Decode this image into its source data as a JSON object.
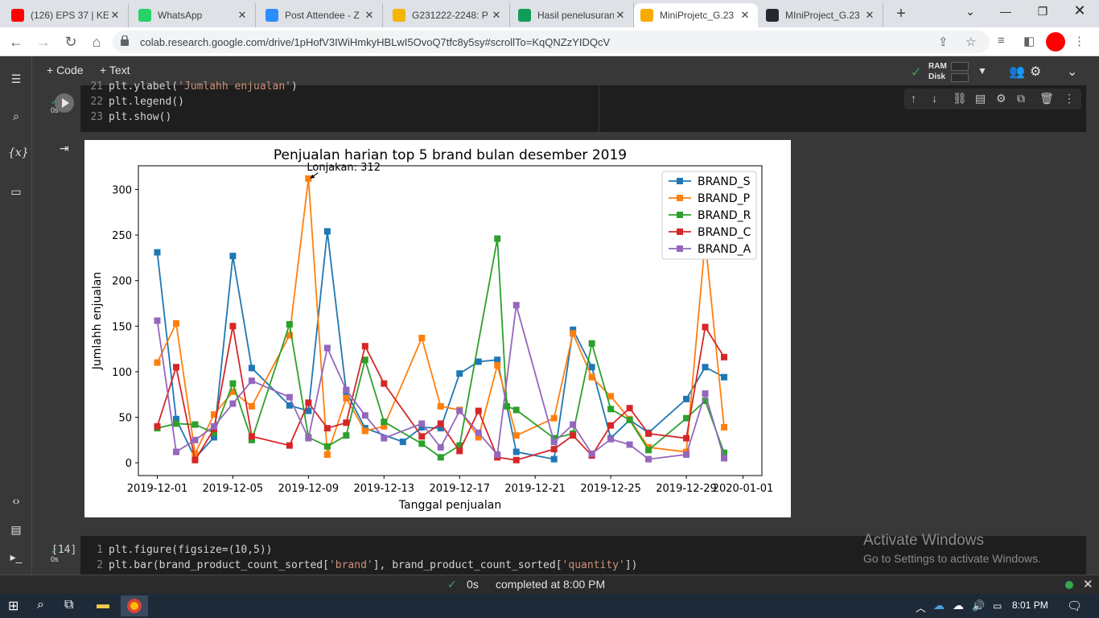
{
  "browser": {
    "tabs": [
      {
        "title": "(126) EPS 37 | KES",
        "icon": "youtube-icon",
        "color": "#ff0000"
      },
      {
        "title": "WhatsApp",
        "icon": "whatsapp-icon",
        "color": "#25d366"
      },
      {
        "title": "Post Attendee - Z",
        "icon": "zoom-icon",
        "color": "#2d8cff"
      },
      {
        "title": "G231222-2248: P",
        "icon": "g-icon",
        "color": "#f4b400"
      },
      {
        "title": "Hasil penelusuran",
        "icon": "drive-icon",
        "color": "#0f9d58"
      },
      {
        "title": "MiniProjetc_G.23",
        "icon": "colab-icon",
        "color": "#f9ab00"
      },
      {
        "title": "MIniProject_G.23",
        "icon": "github-icon",
        "color": "#24292e"
      }
    ],
    "new_tab": "+",
    "url": "colab.research.google.com/drive/1pHofV3IWiHmkyHBLwI5OvoQ7tfc8y5sy#scrollTo=KqQNZzYIDQcV"
  },
  "colab": {
    "add_code": "+ Code",
    "add_text": "+ Text",
    "ram_label": "RAM",
    "disk_label": "Disk"
  },
  "cell1": {
    "status": "0s",
    "lines": [
      {
        "num": "21",
        "pre": "plt.ylabel(",
        "str": "'Jumlahh enjualan'",
        "post": ")"
      },
      {
        "num": "22",
        "pre": "plt.legend()",
        "str": "",
        "post": ""
      },
      {
        "num": "23",
        "pre": "plt.show()",
        "str": "",
        "post": ""
      }
    ]
  },
  "cell2": {
    "exec_count": "[14]",
    "status": "0s",
    "lines": [
      {
        "num": "1",
        "text": "plt.figure(figsize=(10,5))"
      },
      {
        "num": "2",
        "pre": "plt.bar(brand_product_count_sorted[",
        "str1": "'brand'",
        "mid": "], brand_product_count_sorted[",
        "str2": "'quantity'",
        "post": "])"
      }
    ]
  },
  "chart_data": {
    "type": "line",
    "title": "Penjualan harian top 5 brand bulan desember 2019",
    "xlabel": "Tanggal penjualan",
    "ylabel": "Jumlahh enjualan",
    "x_ticks": [
      "2019-12-01",
      "2019-12-05",
      "2019-12-09",
      "2019-12-13",
      "2019-12-17",
      "2019-12-21",
      "2019-12-25",
      "2019-12-29",
      "2020-01-01"
    ],
    "y_ticks": [
      0,
      50,
      100,
      150,
      200,
      250,
      300
    ],
    "xlim": [
      "2019-11-30",
      "2020-01-02"
    ],
    "ylim": [
      -14,
      326
    ],
    "legend_position": "upper right",
    "annotation": {
      "text": "Lonjakan: 312",
      "x": "2019-12-09",
      "y": 312
    },
    "series": [
      {
        "name": "BRAND_S",
        "color": "#1f77b4",
        "points": [
          [
            "2019-12-01",
            231
          ],
          [
            "2019-12-02",
            48
          ],
          [
            "2019-12-03",
            5
          ],
          [
            "2019-12-04",
            28
          ],
          [
            "2019-12-05",
            227
          ],
          [
            "2019-12-06",
            104
          ],
          [
            "2019-12-08",
            63
          ],
          [
            "2019-12-09",
            57
          ],
          [
            "2019-12-10",
            254
          ],
          [
            "2019-12-11",
            78
          ],
          [
            "2019-12-12",
            38
          ],
          [
            "2019-12-14",
            23
          ],
          [
            "2019-12-15",
            39
          ],
          [
            "2019-12-16",
            38
          ],
          [
            "2019-12-17",
            98
          ],
          [
            "2019-12-18",
            111
          ],
          [
            "2019-12-19",
            113
          ],
          [
            "2019-12-20",
            12
          ],
          [
            "2019-12-22",
            4
          ],
          [
            "2019-12-23",
            146
          ],
          [
            "2019-12-24",
            105
          ],
          [
            "2019-12-25",
            27
          ],
          [
            "2019-12-26",
            47
          ],
          [
            "2019-12-27",
            33
          ],
          [
            "2019-12-29",
            70
          ],
          [
            "2019-12-30",
            105
          ],
          [
            "2019-12-31",
            94
          ]
        ]
      },
      {
        "name": "BRAND_P",
        "color": "#ff7f0e",
        "points": [
          [
            "2019-12-01",
            110
          ],
          [
            "2019-12-02",
            153
          ],
          [
            "2019-12-03",
            10
          ],
          [
            "2019-12-04",
            53
          ],
          [
            "2019-12-05",
            78
          ],
          [
            "2019-12-06",
            62
          ],
          [
            "2019-12-08",
            140
          ],
          [
            "2019-12-09",
            312
          ],
          [
            "2019-12-10",
            9
          ],
          [
            "2019-12-11",
            71
          ],
          [
            "2019-12-12",
            35
          ],
          [
            "2019-12-13",
            40
          ],
          [
            "2019-12-15",
            137
          ],
          [
            "2019-12-16",
            62
          ],
          [
            "2019-12-17",
            58
          ],
          [
            "2019-12-18",
            28
          ],
          [
            "2019-12-19",
            107
          ],
          [
            "2019-12-20",
            30
          ],
          [
            "2019-12-22",
            49
          ],
          [
            "2019-12-23",
            142
          ],
          [
            "2019-12-24",
            94
          ],
          [
            "2019-12-25",
            73
          ],
          [
            "2019-12-26",
            48
          ],
          [
            "2019-12-27",
            17
          ],
          [
            "2019-12-29",
            12
          ],
          [
            "2019-12-30",
            244
          ],
          [
            "2019-12-31",
            39
          ]
        ]
      },
      {
        "name": "BRAND_R",
        "color": "#2ca02c",
        "points": [
          [
            "2019-12-01",
            38
          ],
          [
            "2019-12-02",
            43
          ],
          [
            "2019-12-03",
            42
          ],
          [
            "2019-12-04",
            33
          ],
          [
            "2019-12-05",
            87
          ],
          [
            "2019-12-06",
            25
          ],
          [
            "2019-12-08",
            152
          ],
          [
            "2019-12-09",
            28
          ],
          [
            "2019-12-10",
            18
          ],
          [
            "2019-12-11",
            30
          ],
          [
            "2019-12-12",
            113
          ],
          [
            "2019-12-13",
            45
          ],
          [
            "2019-12-15",
            21
          ],
          [
            "2019-12-16",
            6
          ],
          [
            "2019-12-17",
            19
          ],
          [
            "2019-12-19",
            246
          ],
          [
            "2019-12-19.5",
            62
          ],
          [
            "2019-12-20",
            58
          ],
          [
            "2019-12-22",
            27
          ],
          [
            "2019-12-23",
            32
          ],
          [
            "2019-12-24",
            131
          ],
          [
            "2019-12-25",
            59
          ],
          [
            "2019-12-26",
            47
          ],
          [
            "2019-12-27",
            14
          ],
          [
            "2019-12-29",
            49
          ],
          [
            "2019-12-30",
            68
          ],
          [
            "2019-12-31",
            11
          ]
        ]
      },
      {
        "name": "BRAND_C",
        "color": "#d62728",
        "points": [
          [
            "2019-12-01",
            40
          ],
          [
            "2019-12-02",
            105
          ],
          [
            "2019-12-03",
            3
          ],
          [
            "2019-12-04",
            37
          ],
          [
            "2019-12-05",
            150
          ],
          [
            "2019-12-06",
            29
          ],
          [
            "2019-12-08",
            19
          ],
          [
            "2019-12-09",
            66
          ],
          [
            "2019-12-10",
            38
          ],
          [
            "2019-12-11",
            44
          ],
          [
            "2019-12-12",
            128
          ],
          [
            "2019-12-13",
            87
          ],
          [
            "2019-12-15",
            29
          ],
          [
            "2019-12-16",
            43
          ],
          [
            "2019-12-17",
            13
          ],
          [
            "2019-12-18",
            57
          ],
          [
            "2019-12-19",
            6
          ],
          [
            "2019-12-20",
            3
          ],
          [
            "2019-12-22",
            15
          ],
          [
            "2019-12-23",
            30
          ],
          [
            "2019-12-24",
            8
          ],
          [
            "2019-12-25",
            41
          ],
          [
            "2019-12-26",
            60
          ],
          [
            "2019-12-27",
            32
          ],
          [
            "2019-12-29",
            27
          ],
          [
            "2019-12-30",
            149
          ],
          [
            "2019-12-31",
            116
          ]
        ]
      },
      {
        "name": "BRAND_A",
        "color": "#9467bd",
        "points": [
          [
            "2019-12-01",
            156
          ],
          [
            "2019-12-02",
            12
          ],
          [
            "2019-12-03",
            25
          ],
          [
            "2019-12-04",
            40
          ],
          [
            "2019-12-05",
            65
          ],
          [
            "2019-12-06",
            90
          ],
          [
            "2019-12-08",
            72
          ],
          [
            "2019-12-09",
            27
          ],
          [
            "2019-12-10",
            126
          ],
          [
            "2019-12-11",
            80
          ],
          [
            "2019-12-12",
            52
          ],
          [
            "2019-12-13",
            27
          ],
          [
            "2019-12-15",
            43
          ],
          [
            "2019-12-16",
            17
          ],
          [
            "2019-12-17",
            57
          ],
          [
            "2019-12-18",
            33
          ],
          [
            "2019-12-19",
            9
          ],
          [
            "2019-12-20",
            173
          ],
          [
            "2019-12-22",
            23
          ],
          [
            "2019-12-23",
            42
          ],
          [
            "2019-12-24",
            10
          ],
          [
            "2019-12-25",
            26
          ],
          [
            "2019-12-26",
            20
          ],
          [
            "2019-12-27",
            4
          ],
          [
            "2019-12-29",
            9
          ],
          [
            "2019-12-30",
            76
          ],
          [
            "2019-12-31",
            5
          ]
        ]
      }
    ]
  },
  "watermark": {
    "title": "Activate Windows",
    "subtitle": "Go to Settings to activate Windows."
  },
  "statusbar": {
    "time": "0s",
    "completed": "completed at 8:00 PM"
  },
  "taskbar": {
    "clock": "8:01 PM"
  }
}
